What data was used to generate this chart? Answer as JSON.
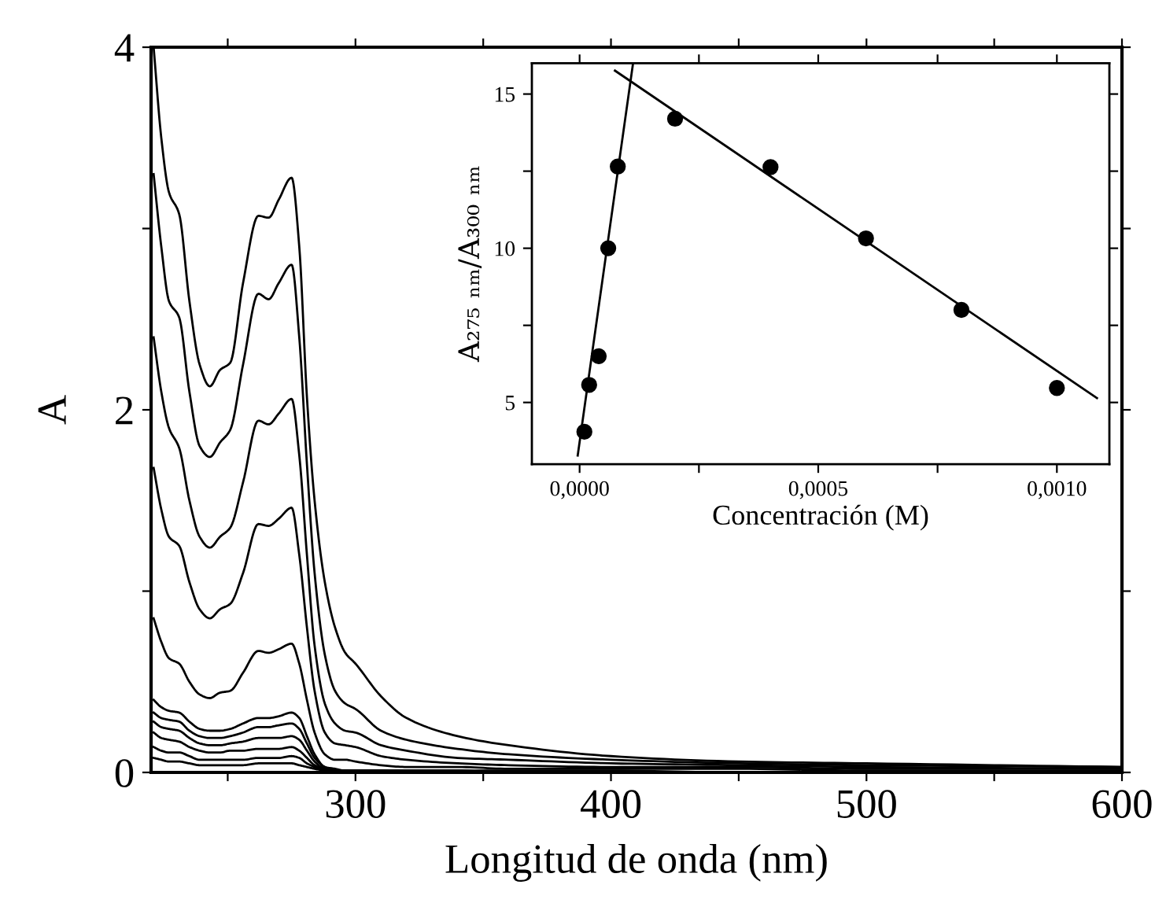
{
  "chart_data": [
    {
      "type": "line",
      "xlabel": "Longitud de onda (nm)",
      "ylabel": "A",
      "xlim": [
        220,
        600
      ],
      "ylim": [
        0,
        4
      ],
      "xticks": [
        {
          "value": 250,
          "label": null
        },
        300,
        {
          "value": 350,
          "label": null
        },
        400,
        {
          "value": 450,
          "label": null
        },
        500,
        {
          "value": 550,
          "label": null
        },
        600
      ],
      "yticks": [
        0,
        {
          "value": 1,
          "label": null
        },
        2,
        {
          "value": 3,
          "label": null
        },
        4
      ],
      "grid": false,
      "legend": false,
      "marker": "none",
      "line_style": "solid",
      "x": [
        221,
        224,
        227,
        231,
        235,
        239,
        243,
        247,
        251,
        256,
        262,
        266,
        270,
        275,
        278,
        281,
        284,
        288,
        292,
        296,
        300,
        310,
        320,
        340,
        360,
        400,
        450,
        500,
        600
      ],
      "series": [
        {
          "color": "#000000",
          "values": [
            4.0,
            3.5,
            3.2,
            3.08,
            2.6,
            2.25,
            2.13,
            2.22,
            2.26,
            2.7,
            3.07,
            3.06,
            3.16,
            3.28,
            2.9,
            2.07,
            1.5,
            1.05,
            0.8,
            0.66,
            0.6,
            0.42,
            0.3,
            0.2,
            0.15,
            0.09,
            0.06,
            0.05,
            0.03
          ]
        },
        {
          "color": "#000000",
          "values": [
            3.3,
            2.9,
            2.6,
            2.51,
            2.1,
            1.8,
            1.74,
            1.82,
            1.89,
            2.25,
            2.64,
            2.61,
            2.7,
            2.8,
            2.4,
            1.7,
            1.1,
            0.65,
            0.45,
            0.38,
            0.35,
            0.23,
            0.18,
            0.13,
            0.1,
            0.07,
            0.05,
            0.04,
            0.03
          ]
        },
        {
          "color": "#000000",
          "values": [
            2.4,
            2.1,
            1.9,
            1.79,
            1.5,
            1.3,
            1.24,
            1.3,
            1.35,
            1.6,
            1.94,
            1.92,
            1.98,
            2.06,
            1.75,
            1.2,
            0.7,
            0.38,
            0.27,
            0.23,
            0.22,
            0.15,
            0.12,
            0.08,
            0.07,
            0.05,
            0.04,
            0.03,
            0.02
          ]
        },
        {
          "color": "#000000",
          "values": [
            1.68,
            1.45,
            1.3,
            1.25,
            1.05,
            0.9,
            0.85,
            0.9,
            0.93,
            1.1,
            1.37,
            1.36,
            1.4,
            1.46,
            1.2,
            0.8,
            0.45,
            0.22,
            0.16,
            0.15,
            0.14,
            0.09,
            0.07,
            0.05,
            0.04,
            0.03,
            0.03,
            0.02,
            0.02
          ]
        },
        {
          "color": "#000000",
          "values": [
            0.85,
            0.72,
            0.63,
            0.6,
            0.5,
            0.43,
            0.41,
            0.44,
            0.45,
            0.55,
            0.67,
            0.66,
            0.68,
            0.71,
            0.6,
            0.4,
            0.22,
            0.1,
            0.07,
            0.07,
            0.06,
            0.04,
            0.03,
            0.03,
            0.02,
            0.02,
            0.02,
            0.01,
            0.01
          ]
        },
        {
          "color": "#000000",
          "values": [
            0.4,
            0.36,
            0.34,
            0.33,
            0.28,
            0.24,
            0.23,
            0.23,
            0.24,
            0.27,
            0.3,
            0.3,
            0.31,
            0.33,
            0.3,
            0.2,
            0.1,
            0.03,
            0.02,
            0.01,
            0.01,
            0.01,
            0.01,
            0.01,
            0.01,
            0.01,
            0.0,
            0.0,
            0.0
          ]
        },
        {
          "color": "#000000",
          "values": [
            0.33,
            0.3,
            0.29,
            0.28,
            0.23,
            0.2,
            0.19,
            0.19,
            0.2,
            0.22,
            0.25,
            0.25,
            0.26,
            0.27,
            0.24,
            0.16,
            0.08,
            0.03,
            0.01,
            0.01,
            0.01,
            0.01,
            0.01,
            0.01,
            0.0,
            0.0,
            0.0,
            0.0,
            0.0
          ]
        },
        {
          "color": "#000000",
          "values": [
            0.28,
            0.25,
            0.24,
            0.23,
            0.19,
            0.16,
            0.15,
            0.15,
            0.16,
            0.17,
            0.19,
            0.19,
            0.19,
            0.2,
            0.18,
            0.12,
            0.06,
            0.02,
            0.01,
            0.01,
            0.01,
            0.01,
            0.0,
            0.0,
            0.0,
            0.0,
            0.0,
            0.0,
            0.0
          ]
        },
        {
          "color": "#000000",
          "values": [
            0.22,
            0.19,
            0.18,
            0.17,
            0.14,
            0.12,
            0.11,
            0.11,
            0.12,
            0.12,
            0.13,
            0.13,
            0.13,
            0.14,
            0.12,
            0.08,
            0.04,
            0.02,
            0.01,
            0.01,
            0.0,
            0.0,
            0.0,
            0.0,
            0.0,
            0.0,
            0.0,
            0.0,
            0.0
          ]
        },
        {
          "color": "#000000",
          "values": [
            0.14,
            0.12,
            0.11,
            0.11,
            0.09,
            0.07,
            0.07,
            0.07,
            0.07,
            0.07,
            0.08,
            0.08,
            0.08,
            0.09,
            0.08,
            0.05,
            0.03,
            0.01,
            0.0,
            0.0,
            0.0,
            0.0,
            0.0,
            0.0,
            0.0,
            0.0,
            0.0,
            0.0,
            0.0
          ]
        },
        {
          "color": "#000000",
          "values": [
            0.08,
            0.07,
            0.06,
            0.06,
            0.05,
            0.04,
            0.04,
            0.04,
            0.04,
            0.04,
            0.05,
            0.05,
            0.05,
            0.05,
            0.04,
            0.03,
            0.02,
            0.01,
            0.0,
            0.0,
            0.0,
            0.0,
            0.0,
            0.0,
            0.0,
            0.0,
            0.0,
            0.0,
            0.0
          ]
        }
      ]
    },
    {
      "type": "scatter",
      "xlabel": "Concentración (M)",
      "ylabel": "A₂₇₅ ₙₘ/A₃₀₀ ₙₘ",
      "xlim": [
        -0.0001,
        0.00111
      ],
      "ylim": [
        3,
        16
      ],
      "xticks": [
        {
          "value": 0,
          "label": "0,0000"
        },
        {
          "value": 0.00025,
          "label": null
        },
        {
          "value": 0.0005,
          "label": "0,0005"
        },
        {
          "value": 0.00075,
          "label": null
        },
        {
          "value": 0.001,
          "label": "0,0010"
        }
      ],
      "yticks": [
        5,
        {
          "value": 7.5,
          "label": null
        },
        10,
        {
          "value": 12.5,
          "label": null
        },
        15
      ],
      "grid": false,
      "legend": false,
      "marker": "circle",
      "series": [
        {
          "color": "#000000",
          "x": [
            1e-05,
            2e-05,
            4e-05,
            6e-05,
            8e-05,
            0.0002,
            0.0004,
            0.0006,
            0.0008,
            0.001
          ],
          "values": [
            4.05,
            5.57,
            6.5,
            10.0,
            12.65,
            14.2,
            12.63,
            10.32,
            8.0,
            5.47
          ]
        },
        {
          "type": "line",
          "marker": "none",
          "color": "#000000",
          "x": [
            -4e-06,
            0.000112
          ],
          "values": [
            3.28,
            16.0
          ]
        },
        {
          "type": "line",
          "marker": "none",
          "color": "#000000",
          "x": [
            7.4e-05,
            0.001084
          ],
          "values": [
            15.76,
            5.14
          ]
        }
      ]
    }
  ]
}
